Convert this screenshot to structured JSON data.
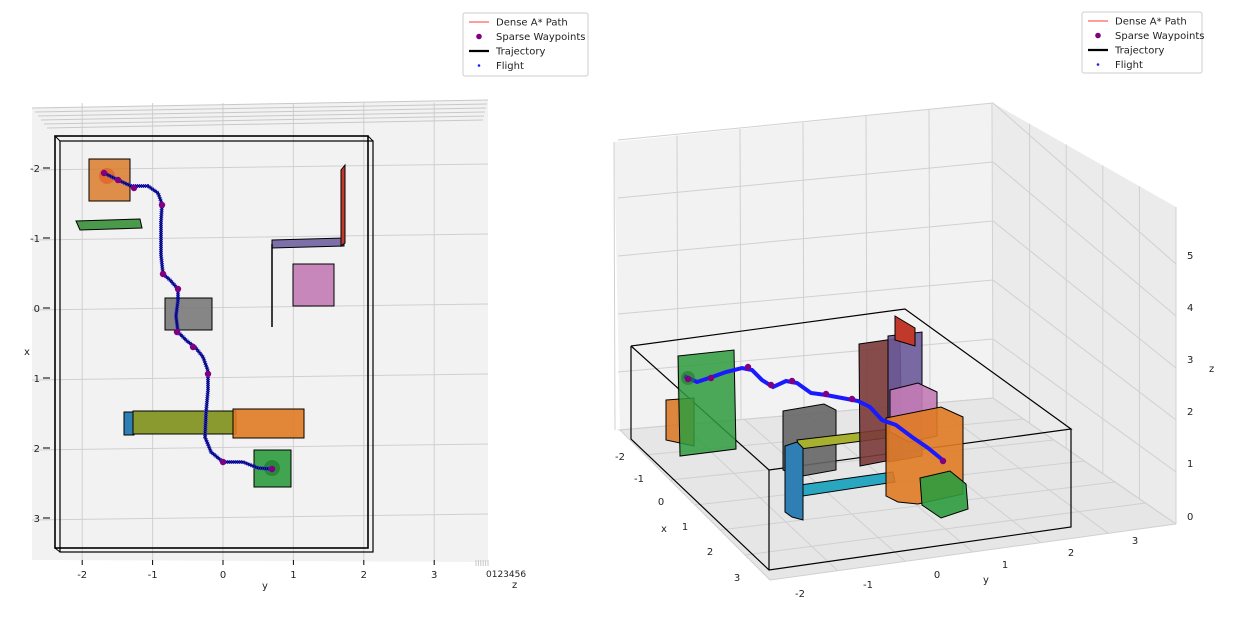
{
  "legend": [
    {
      "label": "Dense A* Path",
      "kind": "line",
      "color": "#ff3b3b"
    },
    {
      "label": "Sparse Waypoints",
      "kind": "dot",
      "color": "#800080"
    },
    {
      "label": "Trajectory",
      "kind": "thickline",
      "color": "#000000"
    },
    {
      "label": "Flight",
      "kind": "smalldot",
      "color": "#1a1aff"
    }
  ],
  "chart_data": [
    {
      "type": "scatter",
      "view": "top-down 3D view",
      "axes": {
        "x": {
          "label": "x",
          "ticks": [
            "-2",
            "-1",
            "0",
            "1",
            "2",
            "3"
          ],
          "range": [
            -2.2,
            3.5
          ]
        },
        "y": {
          "label": "y",
          "ticks": [
            "-2",
            "-1",
            "0",
            "1",
            "2",
            "3"
          ],
          "range": [
            -2.4,
            3.9
          ]
        },
        "z": {
          "label": "z",
          "ticks": [
            "0",
            "1",
            "2",
            "3",
            "4",
            "5"
          ]
        }
      },
      "grid": true,
      "legend_position": "top-right",
      "obstacles": [
        {
          "color": "#d9741e",
          "name": "orange start block"
        },
        {
          "color": "#2e8b2e",
          "name": "green strip"
        },
        {
          "color": "#7d6fa8",
          "name": "purple wall"
        },
        {
          "color": "#c0392b",
          "name": "red wall"
        },
        {
          "color": "#c37bb5",
          "name": "pink box"
        },
        {
          "color": "#7a7a7a",
          "name": "gray box"
        },
        {
          "color": "#8a9a2e",
          "name": "olive bar"
        },
        {
          "color": "#2f7fb5",
          "name": "blue post"
        },
        {
          "color": "#e07b24",
          "name": "orange box"
        },
        {
          "color": "#2e9b3e",
          "name": "green goal box"
        }
      ],
      "series": [
        {
          "name": "Sparse Waypoints",
          "points": [
            {
              "x": -1.95,
              "y": -1.65
            },
            {
              "x": -1.9,
              "y": -1.55
            },
            {
              "x": -1.75,
              "y": -1.2
            },
            {
              "x": -1.6,
              "y": -0.85
            },
            {
              "x": -0.5,
              "y": -0.85
            },
            {
              "x": -0.3,
              "y": -0.7
            },
            {
              "x": 0.3,
              "y": -0.6
            },
            {
              "x": 0.55,
              "y": -0.4
            },
            {
              "x": 0.95,
              "y": -0.2
            },
            {
              "x": 2.2,
              "y": 0.0
            },
            {
              "x": 2.2,
              "y": 0.7
            }
          ]
        }
      ]
    },
    {
      "type": "scatter",
      "view": "perspective 3D view",
      "axes": {
        "x": {
          "label": "x",
          "ticks": [
            "-2",
            "-1",
            "0",
            "1",
            "2",
            "3"
          ]
        },
        "y": {
          "label": "y",
          "ticks": [
            "-2",
            "-1",
            "0",
            "1",
            "2",
            "3"
          ]
        },
        "z": {
          "label": "z",
          "ticks": [
            "0",
            "1",
            "2",
            "3",
            "4",
            "5"
          ],
          "range": [
            0,
            5.8
          ]
        }
      },
      "grid": true,
      "legend_position": "top-right"
    }
  ]
}
